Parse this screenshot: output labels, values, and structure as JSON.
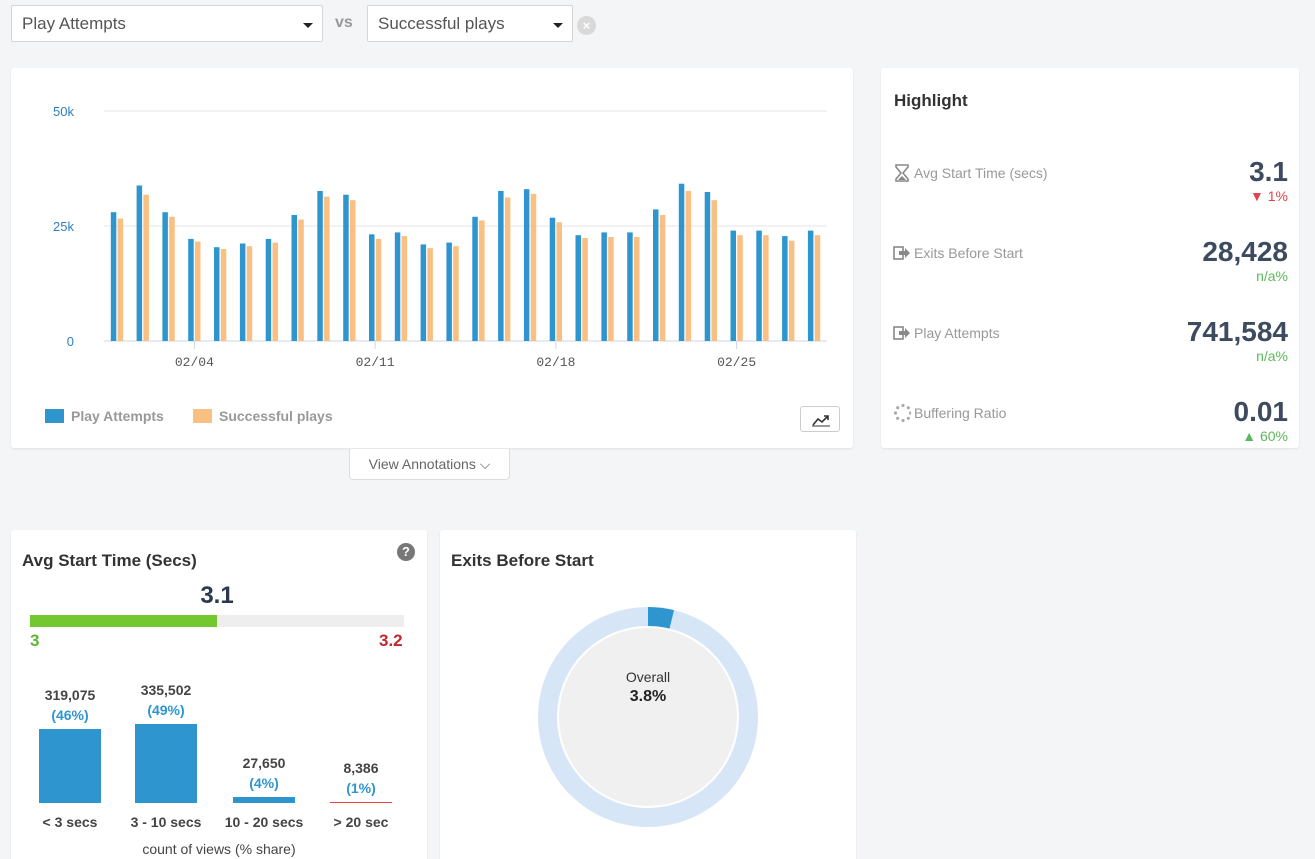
{
  "metric_selectors": {
    "primary": "Play Attempts",
    "vs_label": "vs",
    "secondary": "Successful plays"
  },
  "trend_chart": {
    "view_annotations_label": "View Annotations ⌵"
  },
  "chart_data": {
    "type": "bar",
    "y_ticks": [
      "50k",
      "25k",
      "0"
    ],
    "ylim": [
      0,
      50000
    ],
    "x_ticks": [
      {
        "label": "02/04",
        "index": 3
      },
      {
        "label": "02/11",
        "index": 10
      },
      {
        "label": "02/18",
        "index": 17
      },
      {
        "label": "02/25",
        "index": 24
      }
    ],
    "series": [
      {
        "name": "Play Attempts",
        "color": "#2f95cf",
        "values": [
          28000,
          33800,
          28000,
          22200,
          20400,
          21200,
          22200,
          27400,
          32600,
          31800,
          23200,
          23600,
          21000,
          21400,
          27000,
          32600,
          33000,
          26800,
          23000,
          23600,
          23600,
          28600,
          34200,
          32400,
          24000,
          24000,
          22800,
          24000
        ]
      },
      {
        "name": "Successful plays",
        "color": "#f9bf83",
        "values": [
          26600,
          31800,
          27000,
          21600,
          20000,
          20600,
          21400,
          26400,
          31400,
          30600,
          22200,
          22800,
          20200,
          20600,
          26200,
          31200,
          32000,
          25800,
          22400,
          22600,
          22600,
          27400,
          32600,
          30600,
          23000,
          23000,
          21800,
          23000
        ]
      }
    ]
  },
  "highlight": {
    "title": "Highlight",
    "metrics": [
      {
        "label": "Avg Start Time (secs)",
        "value": "3.1",
        "change": "▼ 1%",
        "change_color": "#e0454c"
      },
      {
        "label": "Exits Before Start",
        "value": "28,428",
        "change": "n/a%",
        "change_color": "#5cb85c"
      },
      {
        "label": "Play Attempts",
        "value": "741,584",
        "change": "n/a%",
        "change_color": "#5cb85c"
      },
      {
        "label": "Buffering Ratio",
        "value": "0.01",
        "change": "▲ 60%",
        "change_color": "#5cb85c"
      }
    ]
  },
  "avg_start": {
    "title": "Avg Start Time (Secs)",
    "value": "3.1",
    "range_min": "3",
    "range_max": "3.2",
    "fill_fraction": 0.5,
    "buckets": [
      {
        "count": "319,075",
        "pct": "(46%)",
        "label": "< 3 secs",
        "share": 46
      },
      {
        "count": "335,502",
        "pct": "(49%)",
        "label": "3 - 10 secs",
        "share": 49
      },
      {
        "count": "27,650",
        "pct": "(4%)",
        "label": "10 - 20 secs",
        "share": 4
      },
      {
        "count": "8,386",
        "pct": "(1%)",
        "label": "> 20 sec",
        "share": 1
      }
    ],
    "caption": "count of views (% share)"
  },
  "exits": {
    "title": "Exits Before Start",
    "center_label": "Overall",
    "center_value": "3.8%",
    "share": 0.038
  }
}
